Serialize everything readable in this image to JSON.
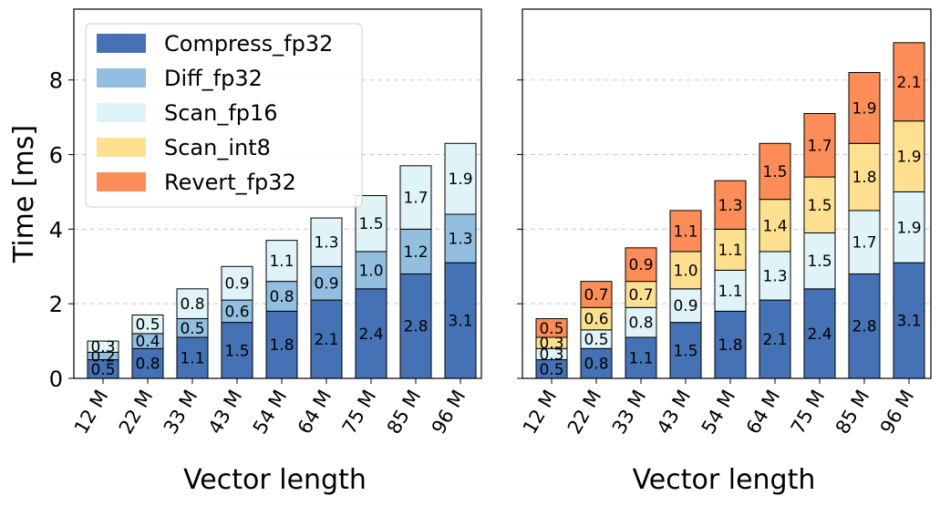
{
  "chart_data": [
    {
      "type": "bar",
      "stacked": true,
      "panel": "left",
      "xlabel": "Vector length",
      "ylabel": "Time [ms]",
      "ylim": [
        0,
        9.9
      ],
      "yticks": [
        0,
        2,
        4,
        6,
        8
      ],
      "grid": "y-dashed",
      "legend": "top-left",
      "categories": [
        "12 M",
        "22 M",
        "33 M",
        "43 M",
        "54 M",
        "64 M",
        "75 M",
        "85 M",
        "96 M"
      ],
      "series": [
        {
          "name": "Compress_fp32",
          "color": "#4472b4",
          "values": [
            0.5,
            0.8,
            1.1,
            1.5,
            1.8,
            2.1,
            2.4,
            2.8,
            3.1
          ]
        },
        {
          "name": "Diff_fp32",
          "color": "#92bfe0",
          "values": [
            0.2,
            0.4,
            0.5,
            0.6,
            0.8,
            0.9,
            1.0,
            1.2,
            1.3
          ]
        },
        {
          "name": "Scan_fp16",
          "color": "#e0f3f8",
          "values": [
            0.3,
            0.5,
            0.8,
            0.9,
            1.1,
            1.3,
            1.5,
            1.7,
            1.9
          ]
        }
      ]
    },
    {
      "type": "bar",
      "stacked": true,
      "panel": "right",
      "xlabel": "Vector length",
      "ylabel": "",
      "ylim": [
        0,
        9.9
      ],
      "yticks": [
        0,
        2,
        4,
        6,
        8
      ],
      "grid": "y-dashed",
      "categories": [
        "12 M",
        "22 M",
        "33 M",
        "43 M",
        "54 M",
        "64 M",
        "75 M",
        "85 M",
        "96 M"
      ],
      "series": [
        {
          "name": "Compress_fp32",
          "color": "#4472b4",
          "values": [
            0.5,
            0.8,
            1.1,
            1.5,
            1.8,
            2.1,
            2.4,
            2.8,
            3.1
          ]
        },
        {
          "name": "Scan_fp16",
          "color": "#e0f3f8",
          "values": [
            0.3,
            0.5,
            0.8,
            0.9,
            1.1,
            1.3,
            1.5,
            1.7,
            1.9
          ]
        },
        {
          "name": "Scan_int8",
          "color": "#fee090",
          "values": [
            0.3,
            0.6,
            0.7,
            1.0,
            1.1,
            1.4,
            1.5,
            1.8,
            1.9
          ]
        },
        {
          "name": "Revert_fp32",
          "color": "#fc8d59",
          "values": [
            0.5,
            0.7,
            0.9,
            1.1,
            1.3,
            1.5,
            1.7,
            1.9,
            2.1
          ]
        }
      ]
    }
  ],
  "legend": [
    {
      "label": "Compress_fp32",
      "color": "#4472b4"
    },
    {
      "label": "Diff_fp32",
      "color": "#92bfe0"
    },
    {
      "label": "Scan_fp16",
      "color": "#e0f3f8"
    },
    {
      "label": "Scan_int8",
      "color": "#fee090"
    },
    {
      "label": "Revert_fp32",
      "color": "#fc8d59"
    }
  ]
}
